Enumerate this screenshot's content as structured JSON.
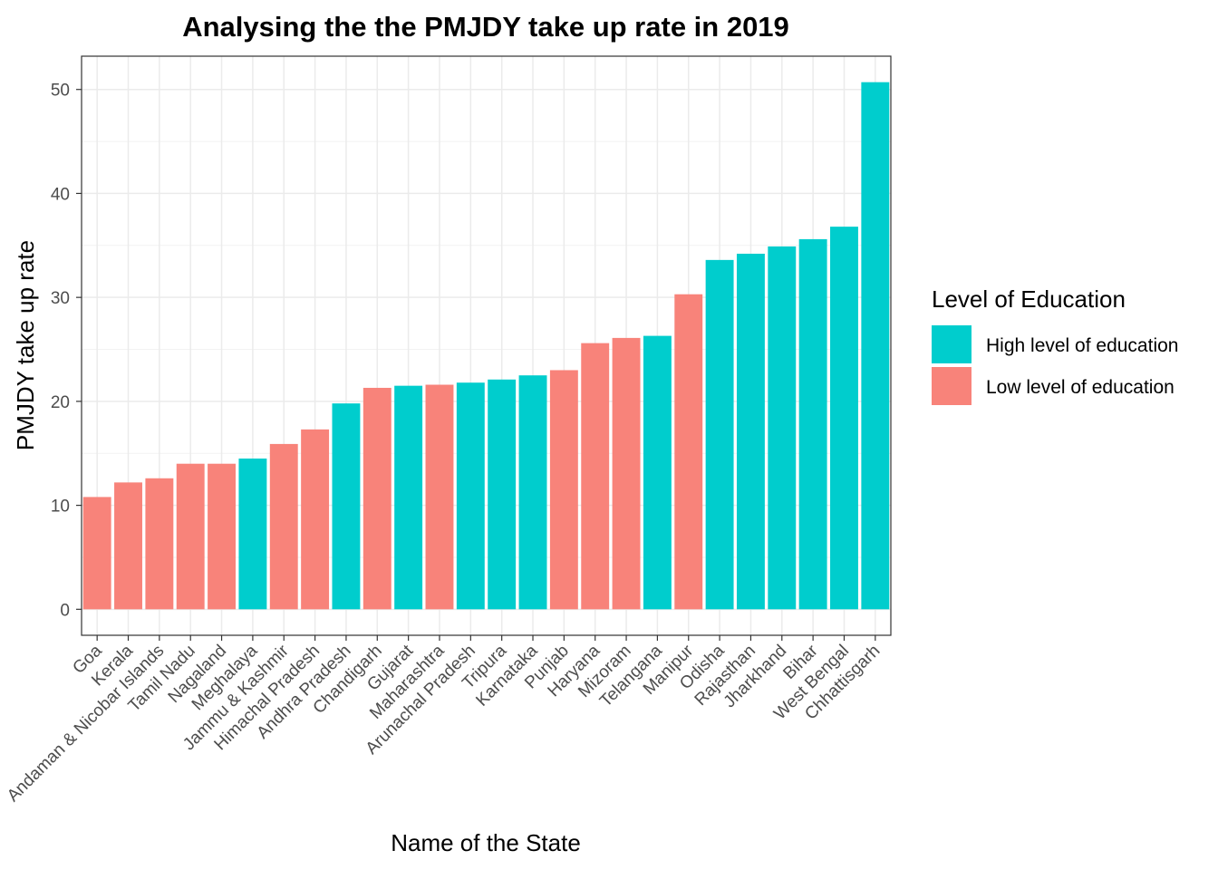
{
  "chart_data": {
    "type": "bar",
    "title": "Analysing the the PMJDY take up rate in 2019",
    "xlabel": "Name of the State",
    "ylabel": "PMJDY take up rate",
    "ylim": [
      -2.5,
      53.2
    ],
    "yticks": [
      0,
      10,
      20,
      30,
      40,
      50
    ],
    "grid": true,
    "legend": {
      "title": "Level of Education",
      "position": "right",
      "entries": [
        {
          "label": "High level of education",
          "color": "#00CDCD"
        },
        {
          "label": "Low level of education",
          "color": "#F8837A"
        }
      ]
    },
    "categories": [
      "Goa",
      "Kerala",
      "Andaman & Nicobar Islands",
      "Tamil Nadu",
      "Nagaland",
      "Meghalaya",
      "Jammu & Kashmir",
      "Himachal Pradesh",
      "Andhra Pradesh",
      "Chandigarh",
      "Gujarat",
      "Maharashtra",
      "Arunachal Pradesh",
      "Tripura",
      "Karnataka",
      "Punjab",
      "Haryana",
      "Mizoram",
      "Telangana",
      "Manipur",
      "Odisha",
      "Rajasthan",
      "Jharkhand",
      "Bihar",
      "West Bengal",
      "Chhattisgarh"
    ],
    "values": [
      10.8,
      12.2,
      12.6,
      14.0,
      14.0,
      14.5,
      15.9,
      17.3,
      19.8,
      21.3,
      21.5,
      21.6,
      21.8,
      22.1,
      22.5,
      23.0,
      25.6,
      26.1,
      26.3,
      30.3,
      33.6,
      34.2,
      34.9,
      35.6,
      36.8,
      50.7
    ],
    "groups": [
      "Low",
      "Low",
      "Low",
      "Low",
      "Low",
      "High",
      "Low",
      "Low",
      "High",
      "Low",
      "High",
      "Low",
      "High",
      "High",
      "High",
      "Low",
      "Low",
      "Low",
      "High",
      "Low",
      "High",
      "High",
      "High",
      "High",
      "High",
      "High"
    ]
  }
}
